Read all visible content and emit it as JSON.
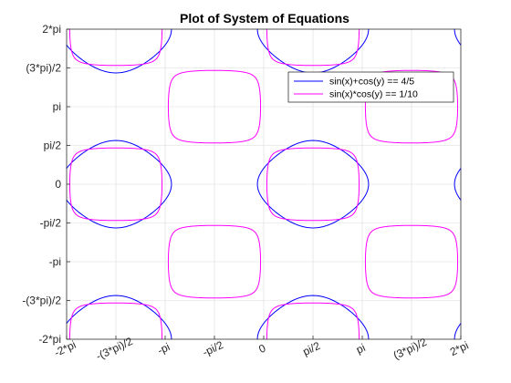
{
  "chart_data": {
    "type": "line",
    "title": "Plot of System of Equations",
    "xlabel": "",
    "ylabel": "",
    "xlim": [
      -6.283185307,
      6.283185307
    ],
    "ylim": [
      -6.283185307,
      6.283185307
    ],
    "grid": true,
    "legend_position": "top-right",
    "xticks": [
      {
        "value": -6.283185307,
        "label": "-2*pi"
      },
      {
        "value": -4.71238898,
        "label": "-(3*pi)/2"
      },
      {
        "value": -3.141592654,
        "label": "-pi"
      },
      {
        "value": -1.570796327,
        "label": "-pi/2"
      },
      {
        "value": 0,
        "label": "0"
      },
      {
        "value": 1.570796327,
        "label": "pi/2"
      },
      {
        "value": 3.141592654,
        "label": "pi"
      },
      {
        "value": 4.71238898,
        "label": "(3*pi)/2"
      },
      {
        "value": 6.283185307,
        "label": "2*pi"
      }
    ],
    "yticks": [
      {
        "value": -6.283185307,
        "label": "-2*pi"
      },
      {
        "value": -4.71238898,
        "label": "-(3*pi)/2"
      },
      {
        "value": -3.141592654,
        "label": "-pi"
      },
      {
        "value": -1.570796327,
        "label": "-pi/2"
      },
      {
        "value": 0,
        "label": "0"
      },
      {
        "value": 1.570796327,
        "label": "pi/2"
      },
      {
        "value": 3.141592654,
        "label": "pi"
      },
      {
        "value": 4.71238898,
        "label": "(3*pi)/2"
      },
      {
        "value": 6.283185307,
        "label": "2*pi"
      }
    ],
    "series": [
      {
        "name": "sin(x)+cos(y) == 4/5",
        "equation": "sin(x)+cos(y)",
        "level": 0.8,
        "color": "#0000ff"
      },
      {
        "name": "sin(x)*cos(y) == 1/10",
        "equation": "sin(x)*cos(y)",
        "level": 0.1,
        "color": "#ff00ff"
      }
    ]
  }
}
